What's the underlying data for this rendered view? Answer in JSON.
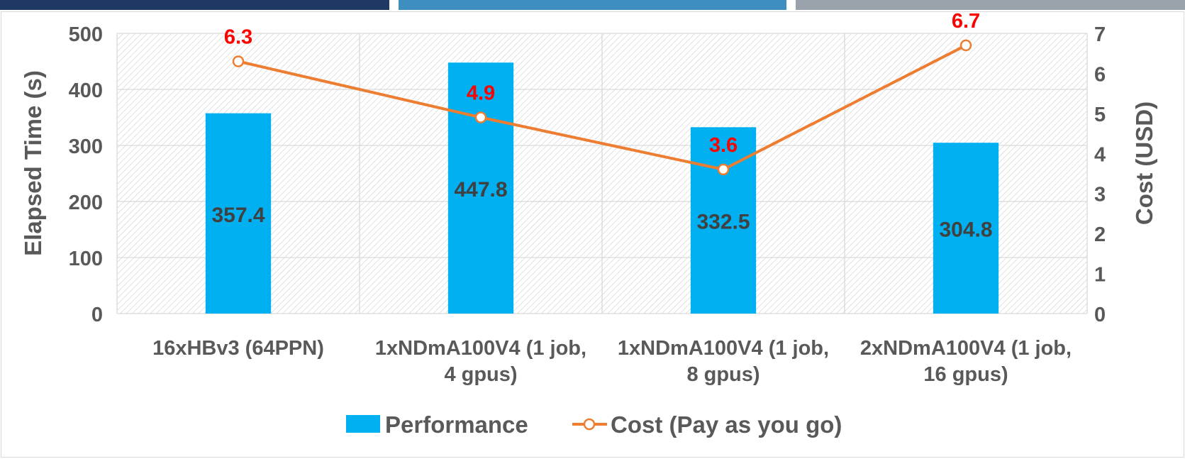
{
  "chart_data": {
    "type": "bar",
    "categories": [
      [
        "16xHBv3 (64PPN)"
      ],
      [
        "1xNDmA100V4 (1 job,",
        "4 gpus)"
      ],
      [
        "1xNDmA100V4 (1 job,",
        "8 gpus)"
      ],
      [
        "2xNDmA100V4 (1 job,",
        "16 gpus)"
      ]
    ],
    "series": [
      {
        "name": "Performance",
        "kind": "bar",
        "axis": "left",
        "color": "#00b0f0",
        "values": [
          357.4,
          447.8,
          332.5,
          304.8
        ],
        "labels": [
          "357.4",
          "447.8",
          "332.5",
          "304.8"
        ]
      },
      {
        "name": "Cost (Pay as you go)",
        "kind": "line",
        "axis": "right",
        "color": "#ed7d31",
        "values": [
          6.3,
          4.9,
          3.6,
          6.7
        ],
        "labels": [
          "6.3",
          "4.9",
          "3.6",
          "6.7"
        ],
        "label_color": "#ff0000"
      }
    ],
    "ylabel": "Elapsed Time (s)",
    "y2label": "Cost (USD)",
    "ylim": [
      0,
      500
    ],
    "y2lim": [
      0,
      7
    ],
    "yticks": [
      "0",
      "100",
      "200",
      "300",
      "400",
      "500"
    ],
    "y2ticks": [
      "0",
      "1",
      "2",
      "3",
      "4",
      "5",
      "6",
      "7"
    ],
    "grid": true,
    "legend": "bottom",
    "colors": {
      "band_1": "#1f3864",
      "band_2": "#3e8ebf",
      "band_3": "#9aa3ab",
      "axis_text": "#595959"
    }
  }
}
